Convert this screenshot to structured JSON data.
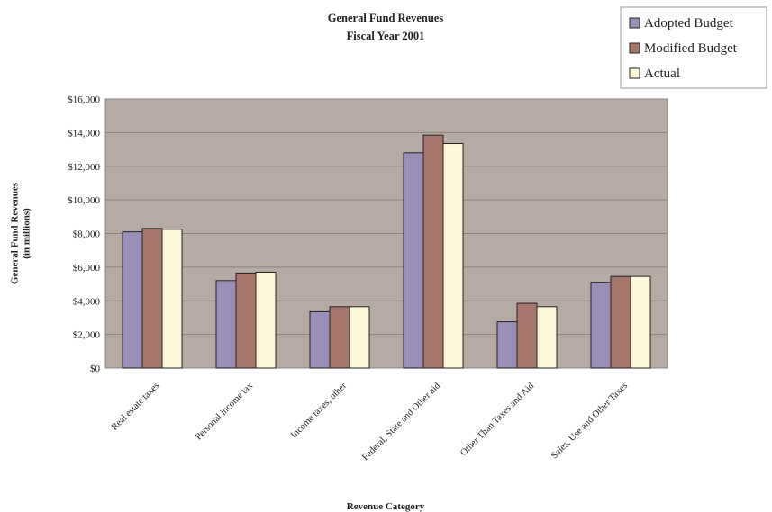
{
  "chart_data": {
    "type": "bar",
    "title": "General Fund Revenues",
    "subtitle": "Fiscal Year 2001",
    "xlabel": "Revenue Category",
    "ylabel": "General Fund Revenues\n(in millions)",
    "categories": [
      "Real estate taxes",
      "Personal income tax",
      "Income taxes, other",
      "Federal, State and Other aid",
      "Other Than Taxes and Aid",
      "Sales, Use and Other Taxes"
    ],
    "series": [
      {
        "name": "Adopted Budget",
        "color": "#9a8fb8",
        "values": [
          8100,
          5200,
          3350,
          12800,
          2750,
          5100
        ]
      },
      {
        "name": "Modified Budget",
        "color": "#a6756c",
        "values": [
          8300,
          5650,
          3650,
          13850,
          3850,
          5450
        ]
      },
      {
        "name": "Actual",
        "color": "#fdf8d8",
        "values": [
          8250,
          5700,
          3650,
          13350,
          3650,
          5450
        ]
      }
    ],
    "ylim": [
      0,
      16000
    ],
    "y_ticks": [
      "$0",
      "$2,000",
      "$4,000",
      "$6,000",
      "$8,000",
      "$10,000",
      "$12,000",
      "$14,000",
      "$16,000"
    ],
    "grid": true,
    "legend_position": "top-right",
    "plot_background": "#b6aaa4"
  }
}
